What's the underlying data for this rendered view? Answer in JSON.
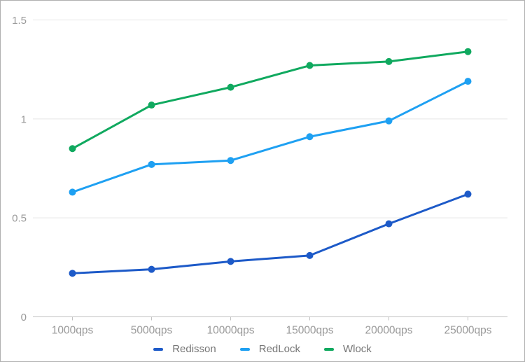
{
  "chart_style": {
    "background": "#ffffff",
    "frame_border_color": "#b0b0b0",
    "grid_color": "#e5e5e5",
    "axis_line_color": "#c2c2c2",
    "tick_color": "#c2c2c2",
    "axis_label_color": "#999999",
    "legend_text_color": "#757575"
  },
  "chart_data": {
    "type": "line",
    "title": "",
    "xlabel": "",
    "ylabel": "",
    "categories": [
      "1000qps",
      "5000qps",
      "10000qps",
      "15000qps",
      "20000qps",
      "25000qps"
    ],
    "series": [
      {
        "name": "Redisson",
        "color": "#1d5ac8",
        "values": [
          0.22,
          0.24,
          0.28,
          0.31,
          0.47,
          0.62
        ]
      },
      {
        "name": "RedLock",
        "color": "#1ea0f2",
        "values": [
          0.63,
          0.77,
          0.79,
          0.91,
          0.99,
          1.19
        ]
      },
      {
        "name": "Wlock",
        "color": "#10a95f",
        "values": [
          0.85,
          1.07,
          1.16,
          1.27,
          1.29,
          1.34
        ]
      }
    ],
    "ylim": [
      0,
      1.5
    ],
    "yticks": [
      0,
      0.5,
      1,
      1.5
    ],
    "ytick_labels": [
      "0",
      "0.5",
      "1",
      "1.5"
    ],
    "grid": "horizontal",
    "legend_position": "bottom",
    "marker": "circle",
    "line_width": 3,
    "marker_radius": 5
  }
}
